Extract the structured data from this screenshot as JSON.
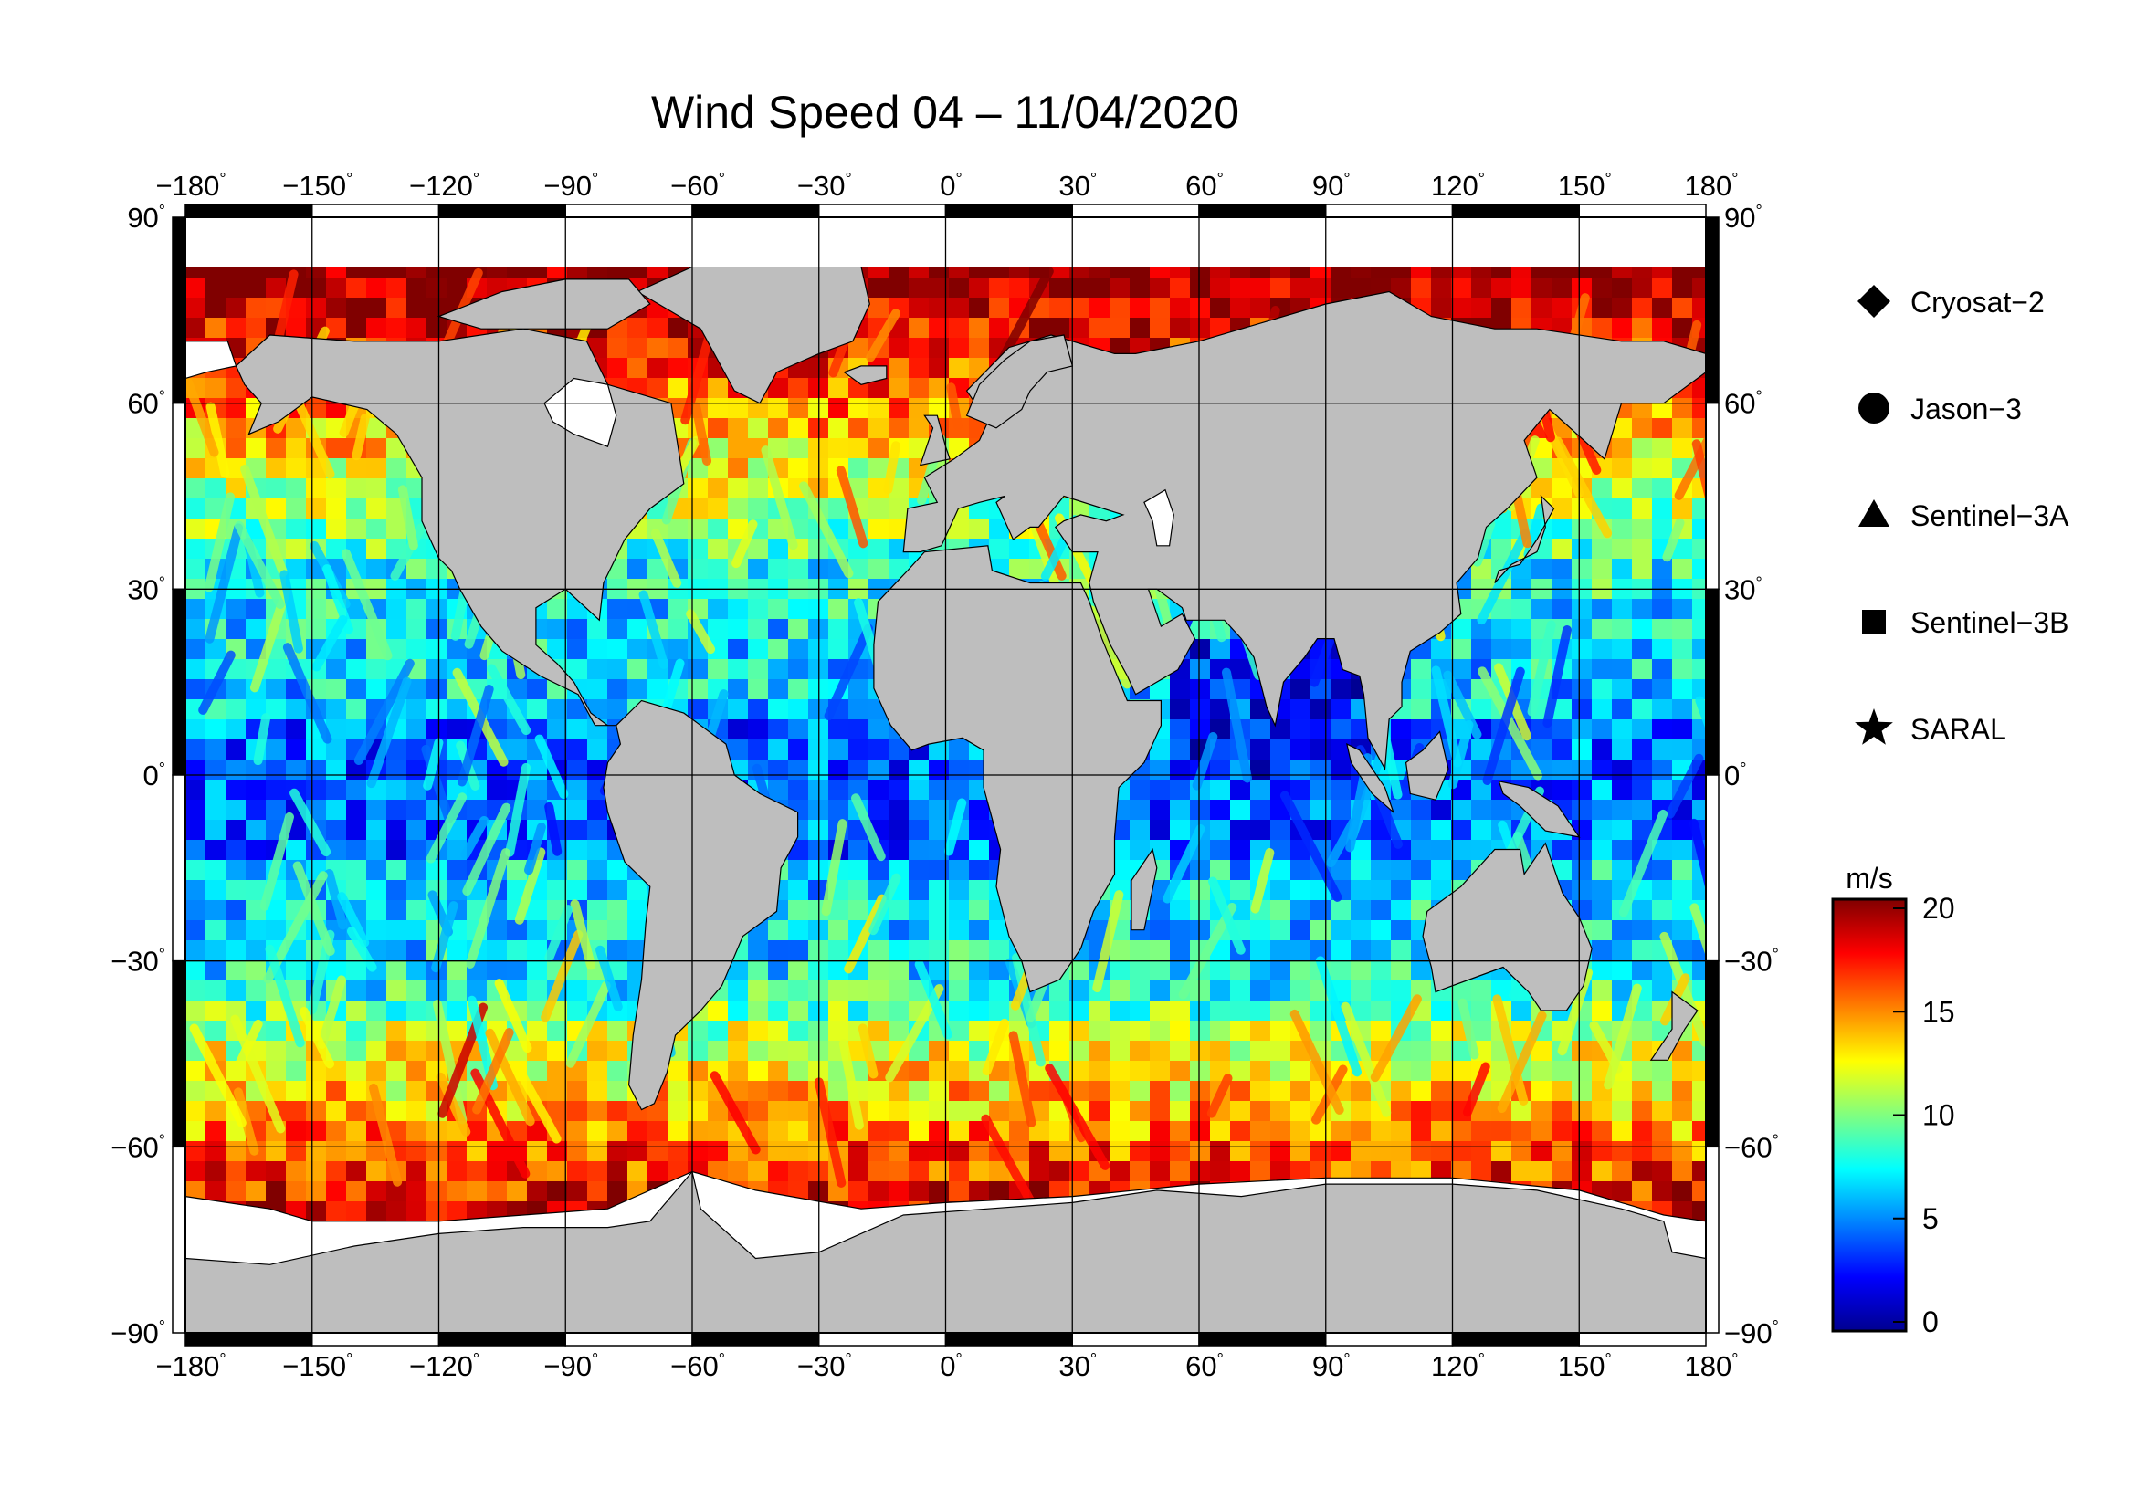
{
  "title": "Wind Speed 04 – 11/04/2020",
  "axes": {
    "degree_symbol": "°",
    "lon_ticks": [
      {
        "value": -180,
        "label": "−180"
      },
      {
        "value": -150,
        "label": "−150"
      },
      {
        "value": -120,
        "label": "−120"
      },
      {
        "value": -90,
        "label": "−90"
      },
      {
        "value": -60,
        "label": "−60"
      },
      {
        "value": -30,
        "label": "−30"
      },
      {
        "value": 0,
        "label": "0"
      },
      {
        "value": 30,
        "label": "30"
      },
      {
        "value": 60,
        "label": "60"
      },
      {
        "value": 90,
        "label": "90"
      },
      {
        "value": 120,
        "label": "120"
      },
      {
        "value": 150,
        "label": "150"
      },
      {
        "value": 180,
        "label": "180"
      }
    ],
    "lat_ticks": [
      {
        "value": 90,
        "label": "90"
      },
      {
        "value": 60,
        "label": "60"
      },
      {
        "value": 30,
        "label": "30"
      },
      {
        "value": 0,
        "label": "0"
      },
      {
        "value": -30,
        "label": "−30"
      },
      {
        "value": -60,
        "label": "−60"
      },
      {
        "value": -90,
        "label": "−90"
      }
    ],
    "lon_range": [
      -180,
      180
    ],
    "lat_range": [
      -90,
      90
    ],
    "grid": true
  },
  "legend": {
    "placement": "right",
    "items": [
      {
        "label": "Cryosat−2",
        "symbol": "diamond"
      },
      {
        "label": "Jason−3",
        "symbol": "circle"
      },
      {
        "label": "Sentinel−3A",
        "symbol": "triangle"
      },
      {
        "label": "Sentinel−3B",
        "symbol": "square"
      },
      {
        "label": "SARAL",
        "symbol": "star"
      }
    ]
  },
  "colorbar": {
    "unit": "m/s",
    "min": 0,
    "max": 20,
    "ticks": [
      {
        "value": 0,
        "label": "0"
      },
      {
        "value": 5,
        "label": "5"
      },
      {
        "value": 10,
        "label": "10"
      },
      {
        "value": 15,
        "label": "15"
      },
      {
        "value": 20,
        "label": "20"
      }
    ],
    "colors": [
      "#00008f",
      "#0000ff",
      "#0080ff",
      "#00ffff",
      "#80ff80",
      "#ffff00",
      "#ff8000",
      "#ff0000",
      "#800000"
    ]
  },
  "colors": {
    "land": "#bebebe",
    "ice": "#ffffff",
    "frame": "#000000"
  }
}
